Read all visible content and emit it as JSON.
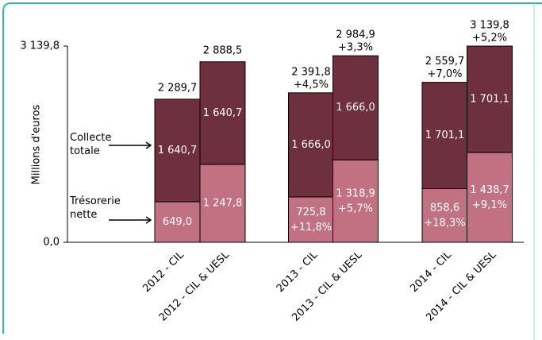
{
  "chart_data": {
    "type": "stacked-bar",
    "y_label": "Millions d'euros",
    "categories": [
      "2012 - CIL",
      "2012 - CIL & UESL",
      "2013 - CIL",
      "2013 - CIL & UESL",
      "2014 - CIL",
      "2014 - CIL & UESL"
    ],
    "series": [
      {
        "name": "Trésorerie nette",
        "color": "#c07282",
        "values": [
          649.0,
          1247.8,
          725.8,
          1318.9,
          858.6,
          1438.7
        ],
        "value_labels": [
          "649,0",
          "1 247,8",
          "725,8",
          "1 318,9",
          "858,6",
          "1 438,7"
        ],
        "growth_labels": [
          null,
          null,
          "+11,8%",
          "+5,7%",
          "+18,3%",
          "+9,1%"
        ]
      },
      {
        "name": "Collecte totale",
        "color": "#6e2f3f",
        "values": [
          1640.7,
          1640.7,
          1666.0,
          1666.0,
          1701.1,
          1701.1
        ],
        "value_labels": [
          "1 640,7",
          "1 640,7",
          "1 666,0",
          "1 666,0",
          "1 701,1",
          "1 701,1"
        ]
      }
    ],
    "totals": {
      "values": [
        2289.7,
        2888.5,
        2391.8,
        2984.9,
        2559.7,
        3139.8
      ],
      "value_labels": [
        "2 289,7",
        "2 888,5",
        "2 391,8",
        "2 984,9",
        "2 559,7",
        "3 139,8"
      ],
      "growth_labels": [
        null,
        null,
        "+4,5%",
        "+3,3%",
        "+7,0%",
        "+5,2%"
      ]
    },
    "ylim": [
      0,
      3139.8
    ],
    "yticks": [
      {
        "value": 0,
        "label": "0,0"
      },
      {
        "value": 3139.8,
        "label": "3 139,8"
      }
    ]
  }
}
